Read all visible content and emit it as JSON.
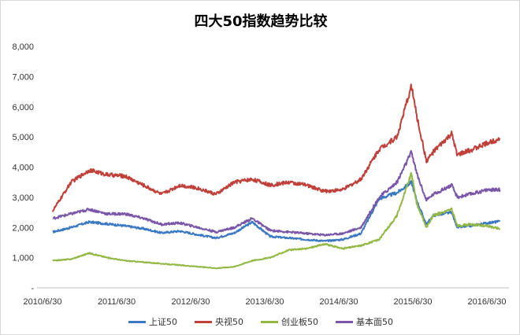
{
  "chart_data": {
    "type": "line",
    "title": "四大50指数趋势比较",
    "xlabel": "",
    "ylabel": "",
    "x_ticks": [
      "2010/6/30",
      "2011/6/30",
      "2012/6/30",
      "2013/6/30",
      "2014/6/30",
      "2015/6/30",
      "2016/6/30"
    ],
    "y_ticks": [
      "-",
      "1,000",
      "2,000",
      "3,000",
      "4,000",
      "5,000",
      "6,000",
      "7,000",
      "8,000"
    ],
    "ylim": [
      0,
      8000
    ],
    "grid": false,
    "legend_position": "bottom",
    "x": [
      "2010-06-30",
      "2010-09-30",
      "2010-12-31",
      "2011-03-31",
      "2011-06-30",
      "2011-09-30",
      "2011-12-31",
      "2012-03-31",
      "2012-06-30",
      "2012-09-30",
      "2012-12-31",
      "2013-03-31",
      "2013-06-30",
      "2013-09-30",
      "2013-12-31",
      "2014-03-31",
      "2014-06-30",
      "2014-09-30",
      "2014-12-31",
      "2015-03-31",
      "2015-06-12",
      "2015-07-08",
      "2015-08-26",
      "2015-09-30",
      "2015-12-31",
      "2016-01-29",
      "2016-03-31",
      "2016-06-30",
      "2016-08-31"
    ],
    "series": [
      {
        "name": "上证50",
        "color": "#3a78c2",
        "values": [
          1850,
          2000,
          2180,
          2120,
          2050,
          1960,
          1820,
          1880,
          1760,
          1650,
          1820,
          2180,
          1700,
          1650,
          1600,
          1550,
          1600,
          1800,
          2950,
          3150,
          3500,
          2900,
          2100,
          2400,
          2500,
          2000,
          2050,
          2150,
          2200
        ]
      },
      {
        "name": "央视50",
        "color": "#c0403a",
        "values": [
          2550,
          3500,
          3900,
          3750,
          3700,
          3400,
          3100,
          3400,
          3300,
          3100,
          3500,
          3600,
          3400,
          3500,
          3400,
          3200,
          3250,
          3600,
          4600,
          5000,
          6700,
          5700,
          4200,
          4500,
          5100,
          4400,
          4550,
          4800,
          4950
        ]
      },
      {
        "name": "创业板50",
        "color": "#93b845",
        "values": [
          900,
          950,
          1150,
          1000,
          900,
          850,
          800,
          750,
          700,
          650,
          700,
          900,
          1000,
          1250,
          1300,
          1450,
          1300,
          1400,
          1600,
          2400,
          3800,
          2800,
          2000,
          2400,
          2600,
          2050,
          2100,
          2050,
          1950
        ]
      },
      {
        "name": "基本面50",
        "color": "#7a56a8",
        "values": [
          2300,
          2450,
          2600,
          2450,
          2450,
          2300,
          2100,
          2150,
          2000,
          1850,
          2000,
          2300,
          1900,
          1850,
          1800,
          1750,
          1800,
          2000,
          3000,
          3500,
          4500,
          3800,
          2900,
          3100,
          3400,
          3000,
          3100,
          3250,
          3250
        ]
      }
    ]
  }
}
